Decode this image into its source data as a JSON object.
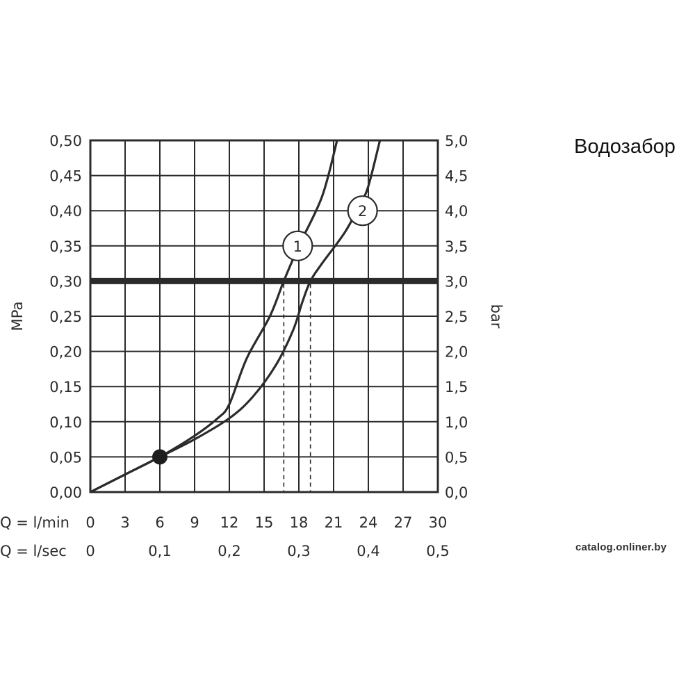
{
  "title": "Водозабор",
  "watermark": "catalog.onliner.by",
  "chart_data": {
    "type": "line",
    "y_left": {
      "label": "MPa",
      "range": [
        0,
        0.5
      ],
      "ticks": [
        "0,00",
        "0,05",
        "0,10",
        "0,15",
        "0,20",
        "0,25",
        "0,30",
        "0,35",
        "0,40",
        "0,45",
        "0,50"
      ]
    },
    "y_right": {
      "label": "bar",
      "range": [
        0,
        5
      ],
      "ticks": [
        "0,0",
        "0,5",
        "1,0",
        "1,5",
        "2,0",
        "2,5",
        "3,0",
        "3,5",
        "4,0",
        "4,5",
        "5,0"
      ]
    },
    "x_primary": {
      "label": "Q = l/min",
      "range": [
        0,
        30
      ],
      "ticks": [
        "0",
        "3",
        "6",
        "9",
        "12",
        "15",
        "18",
        "21",
        "24",
        "27",
        "30"
      ]
    },
    "x_secondary": {
      "label": "Q = l/sec",
      "ticks": [
        {
          "at": 0,
          "text": "0"
        },
        {
          "at": 6,
          "text": "0,1"
        },
        {
          "at": 12,
          "text": "0,2"
        },
        {
          "at": 18,
          "text": "0,3"
        },
        {
          "at": 24,
          "text": "0,4"
        },
        {
          "at": 30,
          "text": "0,5"
        }
      ]
    },
    "grid": true,
    "reference_line": {
      "y": 0.3
    },
    "marker_point": {
      "x": 6,
      "y": 0.05
    },
    "series": [
      {
        "name": "1",
        "points": [
          [
            0,
            0
          ],
          [
            3,
            0.025
          ],
          [
            6,
            0.05
          ],
          [
            9,
            0.08
          ],
          [
            11,
            0.105
          ],
          [
            12,
            0.125
          ],
          [
            13.5,
            0.19
          ],
          [
            15.5,
            0.25
          ],
          [
            16.7,
            0.3
          ],
          [
            18,
            0.35
          ],
          [
            20,
            0.42
          ],
          [
            21.3,
            0.5
          ]
        ]
      },
      {
        "name": "2",
        "points": [
          [
            0,
            0
          ],
          [
            3,
            0.025
          ],
          [
            6,
            0.05
          ],
          [
            9,
            0.075
          ],
          [
            12,
            0.105
          ],
          [
            14,
            0.135
          ],
          [
            16,
            0.18
          ],
          [
            17.5,
            0.23
          ],
          [
            18.3,
            0.27
          ],
          [
            19,
            0.3
          ],
          [
            20,
            0.325
          ],
          [
            22,
            0.37
          ],
          [
            23.3,
            0.41
          ],
          [
            24,
            0.435
          ],
          [
            25,
            0.5
          ]
        ]
      }
    ],
    "dashed_markers": [
      16.7,
      19.0
    ]
  }
}
